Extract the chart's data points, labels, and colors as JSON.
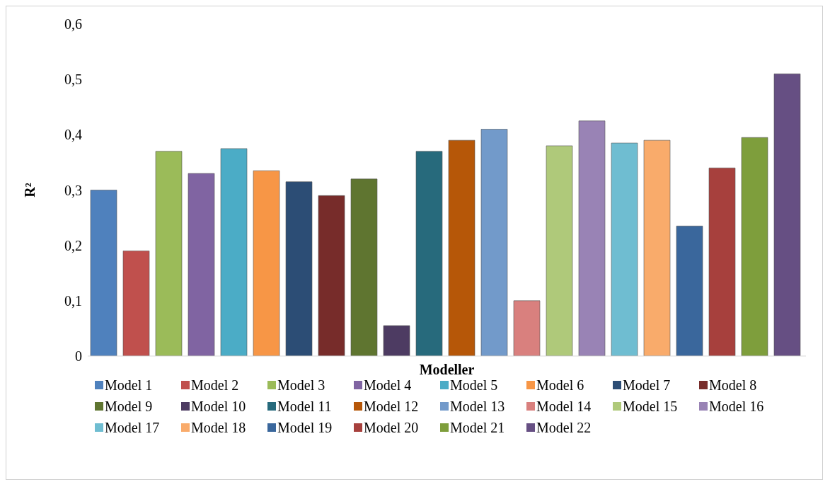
{
  "chart_data": {
    "type": "bar",
    "xlabel": "Modeller",
    "ylabel": "R²",
    "categories": [
      null
    ],
    "series": [
      {
        "name": "Model 1",
        "color": "#4f81bd",
        "values": [
          0.3
        ]
      },
      {
        "name": "Model 2",
        "color": "#c0504d",
        "values": [
          0.19
        ]
      },
      {
        "name": "Model 3",
        "color": "#9bbb59",
        "values": [
          0.37
        ]
      },
      {
        "name": "Model 4",
        "color": "#8064a2",
        "values": [
          0.33
        ]
      },
      {
        "name": "Model 5",
        "color": "#4bacc6",
        "values": [
          0.375
        ]
      },
      {
        "name": "Model 6",
        "color": "#f79646",
        "values": [
          0.335
        ]
      },
      {
        "name": "Model 7",
        "color": "#2c4d75",
        "values": [
          0.315
        ]
      },
      {
        "name": "Model 8",
        "color": "#772c2a",
        "values": [
          0.29
        ]
      },
      {
        "name": "Model 9",
        "color": "#5f7530",
        "values": [
          0.32
        ]
      },
      {
        "name": "Model 10",
        "color": "#4d3b62",
        "values": [
          0.055
        ]
      },
      {
        "name": "Model 11",
        "color": "#276a7c",
        "values": [
          0.37
        ]
      },
      {
        "name": "Model 12",
        "color": "#b65708",
        "values": [
          0.39
        ]
      },
      {
        "name": "Model 13",
        "color": "#729aca",
        "values": [
          0.41
        ]
      },
      {
        "name": "Model 14",
        "color": "#d9807e",
        "values": [
          0.1
        ]
      },
      {
        "name": "Model 15",
        "color": "#afc97a",
        "values": [
          0.38
        ]
      },
      {
        "name": "Model 16",
        "color": "#9983b5",
        "values": [
          0.425
        ]
      },
      {
        "name": "Model 17",
        "color": "#6fbdd1",
        "values": [
          0.385
        ]
      },
      {
        "name": "Model 18",
        "color": "#f9ab6b",
        "values": [
          0.39
        ]
      },
      {
        "name": "Model 19",
        "color": "#3a679c",
        "values": [
          0.235
        ]
      },
      {
        "name": "Model 20",
        "color": "#a7403d",
        "values": [
          0.34
        ]
      },
      {
        "name": "Model 21",
        "color": "#7e9e3c",
        "values": [
          0.395
        ]
      },
      {
        "name": "Model 22",
        "color": "#664f83",
        "values": [
          0.51
        ]
      }
    ],
    "ylim": [
      0,
      0.6
    ],
    "yticks": [
      0,
      {
        "value": 0.1,
        "label": "0,1"
      },
      {
        "value": 0.2,
        "label": "0,2"
      },
      {
        "value": 0.3,
        "label": "0,3"
      },
      {
        "value": 0.4,
        "label": "0,4"
      },
      {
        "value": 0.5,
        "label": "0,5"
      },
      {
        "value": 0.6,
        "label": "0,6"
      }
    ],
    "grid": false,
    "legend": "bottom"
  }
}
